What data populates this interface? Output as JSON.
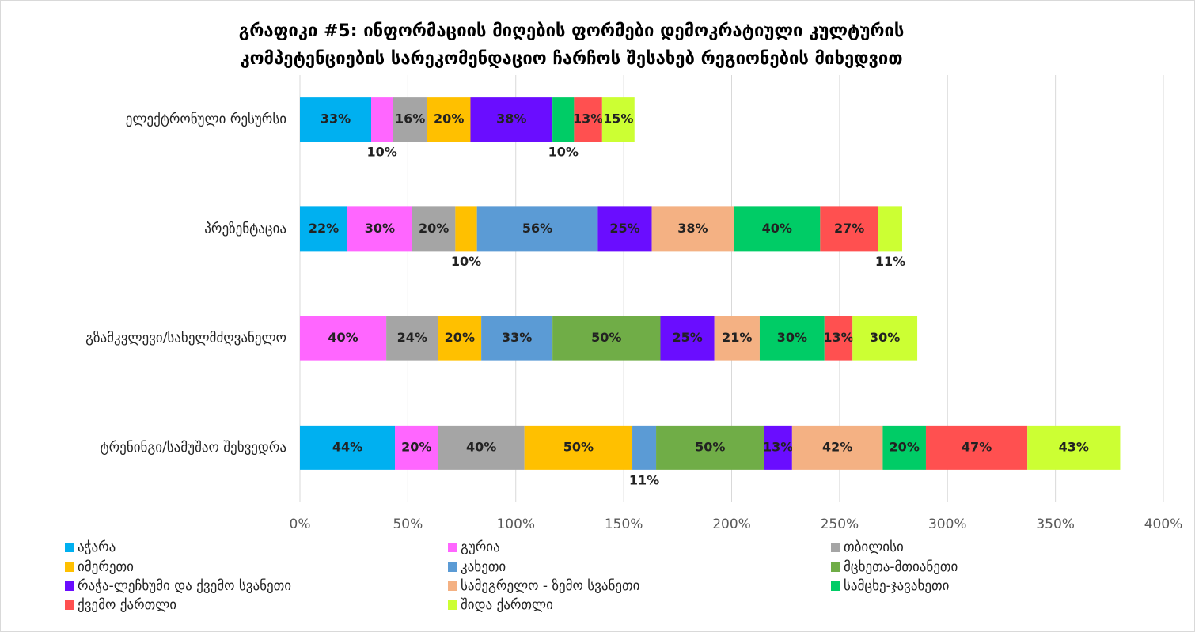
{
  "chart_data": {
    "type": "stacked_barh",
    "title": "გრაფიკი #5:  ინფორმაციის მიღების ფორმები დემოკრატიული კულტურის",
    "subtitle": "კომპეტენციების სარეკომენდაციო ჩარჩოს შესახებ რეგიონების მიხედვით",
    "categories": [
      "ელექტრონული რესურსი",
      "პრეზენტაცია",
      "გზამკვლევი/სახელმძღვანელო",
      "ტრენინგი/სამუშაო შეხვედრა"
    ],
    "series": [
      {
        "name": "აჭარა",
        "color": "#00b0f0",
        "values": [
          33,
          22,
          null,
          44
        ],
        "value_labels": [
          "33%",
          "22%",
          null,
          "44%"
        ]
      },
      {
        "name": "გურია",
        "color": "#ff66ff",
        "values": [
          10,
          30,
          40,
          20
        ],
        "value_labels": [
          "10%",
          "30%",
          "40%",
          "20%"
        ]
      },
      {
        "name": "თბილისი",
        "color": "#a5a5a5",
        "values": [
          16,
          20,
          24,
          40
        ],
        "value_labels": [
          "16%",
          "20%",
          "24%",
          "40%"
        ]
      },
      {
        "name": "იმერეთი",
        "color": "#ffc000",
        "values": [
          20,
          10,
          20,
          50
        ],
        "value_labels": [
          "20%",
          "10%",
          "20%",
          "50%"
        ]
      },
      {
        "name": "კახეთი",
        "color": "#5b9bd5",
        "values": [
          null,
          56,
          33,
          11
        ],
        "value_labels": [
          null,
          "56%",
          "33%",
          "11%"
        ]
      },
      {
        "name": "მცხეთა-მთიანეთი",
        "color": "#70ad47",
        "values": [
          null,
          null,
          50,
          50
        ],
        "value_labels": [
          null,
          null,
          "50%",
          "50%"
        ]
      },
      {
        "name": "რაჭა-ლეჩხუმი და ქვემო სვანეთი",
        "color": "#6a0dff",
        "values": [
          38,
          25,
          25,
          13
        ],
        "value_labels": [
          "38%",
          "25%",
          "25%",
          "13%"
        ]
      },
      {
        "name": "სამეგრელო - ზემო სვანეთი",
        "color": "#f4b183",
        "values": [
          null,
          38,
          21,
          42
        ],
        "value_labels": [
          null,
          "38%",
          "21%",
          "42%"
        ]
      },
      {
        "name": "სამცხე-ჯავახეთი",
        "color": "#00cc66",
        "values": [
          10,
          40,
          30,
          20
        ],
        "value_labels": [
          "10%",
          "40%",
          "30%",
          "20%"
        ]
      },
      {
        "name": "ქვემო ქართლი",
        "color": "#ff5050",
        "values": [
          13,
          27,
          13,
          47
        ],
        "value_labels": [
          "13%",
          "27%",
          "13%",
          "47%"
        ]
      },
      {
        "name": "შიდა ქართლი",
        "color": "#ccff33",
        "values": [
          15,
          11,
          30,
          43
        ],
        "value_labels": [
          "15%",
          "11%",
          "30%",
          "43%"
        ]
      }
    ],
    "xlim": [
      0,
      400
    ],
    "xticks": [
      {
        "value": 0,
        "label": "0%"
      },
      {
        "value": 50,
        "label": "50%"
      },
      {
        "value": 100,
        "label": "100%"
      },
      {
        "value": 150,
        "label": "150%"
      },
      {
        "value": 200,
        "label": "200%"
      },
      {
        "value": 250,
        "label": "250%"
      },
      {
        "value": 300,
        "label": "300%"
      },
      {
        "value": 350,
        "label": "350%"
      },
      {
        "value": 400,
        "label": "400%"
      }
    ],
    "grid": true,
    "legend": "bottom"
  }
}
